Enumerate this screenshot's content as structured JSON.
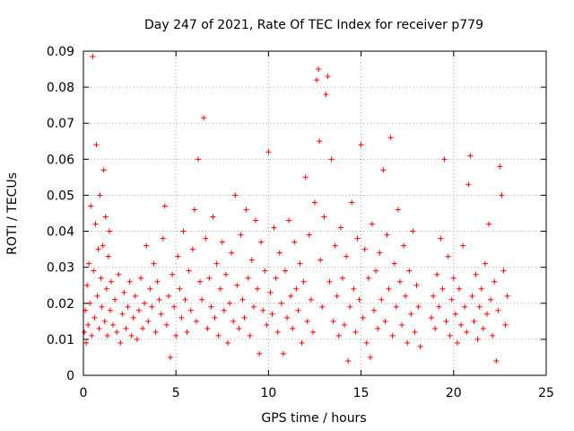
{
  "chart_data": {
    "type": "scatter",
    "title": "Day 247 of 2021, Rate Of TEC Index for receiver p779",
    "xlabel": "GPS time / hours",
    "ylabel": "ROTI / TECUs",
    "xlim": [
      0,
      25
    ],
    "ylim": [
      0,
      0.09
    ],
    "x_ticks": [
      0,
      5,
      10,
      15,
      20,
      25
    ],
    "y_ticks": [
      0,
      0.01,
      0.02,
      0.03,
      0.04,
      0.05,
      0.06,
      0.07,
      0.08,
      0.09
    ],
    "x_tick_labels": [
      "0",
      "5",
      "10",
      "15",
      "20",
      "25"
    ],
    "y_tick_labels": [
      "0",
      "0.01",
      "0.02",
      "0.03",
      "0.04",
      "0.05",
      "0.06",
      "0.07",
      "0.08",
      "0.09"
    ],
    "grid": true,
    "marker": "+",
    "color": "#ff0000",
    "series": [
      {
        "name": "ROTI",
        "points": [
          [
            0.05,
            0.012
          ],
          [
            0.1,
            0.018
          ],
          [
            0.15,
            0.009
          ],
          [
            0.2,
            0.025
          ],
          [
            0.25,
            0.014
          ],
          [
            0.3,
            0.031
          ],
          [
            0.35,
            0.02
          ],
          [
            0.4,
            0.047
          ],
          [
            0.45,
            0.011
          ],
          [
            0.5,
            0.0885
          ],
          [
            0.55,
            0.029
          ],
          [
            0.6,
            0.016
          ],
          [
            0.65,
            0.042
          ],
          [
            0.7,
            0.064
          ],
          [
            0.75,
            0.022
          ],
          [
            0.8,
            0.035
          ],
          [
            0.85,
            0.013
          ],
          [
            0.9,
            0.05
          ],
          [
            0.95,
            0.027
          ],
          [
            1.0,
            0.019
          ],
          [
            1.05,
            0.036
          ],
          [
            1.1,
            0.057
          ],
          [
            1.15,
            0.015
          ],
          [
            1.2,
            0.044
          ],
          [
            1.25,
            0.024
          ],
          [
            1.3,
            0.011
          ],
          [
            1.35,
            0.033
          ],
          [
            1.4,
            0.04
          ],
          [
            1.45,
            0.018
          ],
          [
            1.5,
            0.026
          ],
          [
            1.6,
            0.014
          ],
          [
            1.7,
            0.021
          ],
          [
            1.8,
            0.012
          ],
          [
            1.9,
            0.028
          ],
          [
            2.0,
            0.009
          ],
          [
            2.1,
            0.017
          ],
          [
            2.2,
            0.023
          ],
          [
            2.3,
            0.013
          ],
          [
            2.4,
            0.019
          ],
          [
            2.5,
            0.026
          ],
          [
            2.6,
            0.011
          ],
          [
            2.7,
            0.016
          ],
          [
            2.8,
            0.022
          ],
          [
            2.9,
            0.01
          ],
          [
            3.0,
            0.018
          ],
          [
            3.1,
            0.027
          ],
          [
            3.2,
            0.013
          ],
          [
            3.3,
            0.02
          ],
          [
            3.4,
            0.036
          ],
          [
            3.5,
            0.015
          ],
          [
            3.6,
            0.024
          ],
          [
            3.7,
            0.019
          ],
          [
            3.8,
            0.031
          ],
          [
            3.9,
            0.012
          ],
          [
            4.0,
            0.026
          ],
          [
            4.1,
            0.021
          ],
          [
            4.2,
            0.017
          ],
          [
            4.3,
            0.038
          ],
          [
            4.4,
            0.047
          ],
          [
            4.5,
            0.014
          ],
          [
            4.6,
            0.022
          ],
          [
            4.7,
            0.005
          ],
          [
            4.8,
            0.028
          ],
          [
            4.9,
            0.019
          ],
          [
            5.0,
            0.011
          ],
          [
            5.1,
            0.033
          ],
          [
            5.2,
            0.024
          ],
          [
            5.3,
            0.016
          ],
          [
            5.4,
            0.04
          ],
          [
            5.5,
            0.021
          ],
          [
            5.6,
            0.012
          ],
          [
            5.7,
            0.029
          ],
          [
            5.8,
            0.018
          ],
          [
            5.9,
            0.035
          ],
          [
            6.0,
            0.046
          ],
          [
            6.1,
            0.015
          ],
          [
            6.2,
            0.06
          ],
          [
            6.3,
            0.026
          ],
          [
            6.4,
            0.021
          ],
          [
            6.5,
            0.0715
          ],
          [
            6.6,
            0.038
          ],
          [
            6.7,
            0.013
          ],
          [
            6.8,
            0.027
          ],
          [
            6.9,
            0.019
          ],
          [
            7.0,
            0.044
          ],
          [
            7.1,
            0.016
          ],
          [
            7.2,
            0.031
          ],
          [
            7.3,
            0.011
          ],
          [
            7.4,
            0.024
          ],
          [
            7.5,
            0.037
          ],
          [
            7.6,
            0.018
          ],
          [
            7.7,
            0.028
          ],
          [
            7.8,
            0.009
          ],
          [
            7.9,
            0.02
          ],
          [
            8.0,
            0.034
          ],
          [
            8.1,
            0.015
          ],
          [
            8.2,
            0.05
          ],
          [
            8.3,
            0.025
          ],
          [
            8.4,
            0.013
          ],
          [
            8.5,
            0.039
          ],
          [
            8.6,
            0.021
          ],
          [
            8.7,
            0.016
          ],
          [
            8.8,
            0.046
          ],
          [
            8.9,
            0.027
          ],
          [
            9.0,
            0.011
          ],
          [
            9.1,
            0.032
          ],
          [
            9.2,
            0.019
          ],
          [
            9.3,
            0.043
          ],
          [
            9.4,
            0.024
          ],
          [
            9.5,
            0.006
          ],
          [
            9.6,
            0.037
          ],
          [
            9.7,
            0.018
          ],
          [
            9.8,
            0.029
          ],
          [
            9.9,
            0.014
          ],
          [
            10.0,
            0.062
          ],
          [
            10.1,
            0.023
          ],
          [
            10.2,
            0.017
          ],
          [
            10.3,
            0.041
          ],
          [
            10.4,
            0.027
          ],
          [
            10.5,
            0.012
          ],
          [
            10.6,
            0.034
          ],
          [
            10.7,
            0.02
          ],
          [
            10.8,
            0.006
          ],
          [
            10.9,
            0.029
          ],
          [
            11.0,
            0.016
          ],
          [
            11.1,
            0.043
          ],
          [
            11.2,
            0.022
          ],
          [
            11.3,
            0.013
          ],
          [
            11.4,
            0.037
          ],
          [
            11.5,
            0.024
          ],
          [
            11.6,
            0.018
          ],
          [
            11.7,
            0.031
          ],
          [
            11.8,
            0.009
          ],
          [
            11.9,
            0.026
          ],
          [
            12.0,
            0.055
          ],
          [
            12.1,
            0.015
          ],
          [
            12.2,
            0.039
          ],
          [
            12.3,
            0.021
          ],
          [
            12.4,
            0.012
          ],
          [
            12.5,
            0.048
          ],
          [
            12.6,
            0.082
          ],
          [
            12.7,
            0.085
          ],
          [
            12.75,
            0.065
          ],
          [
            12.8,
            0.032
          ],
          [
            12.9,
            0.019
          ],
          [
            13.0,
            0.044
          ],
          [
            13.1,
            0.078
          ],
          [
            13.2,
            0.083
          ],
          [
            13.3,
            0.026
          ],
          [
            13.4,
            0.06
          ],
          [
            13.5,
            0.015
          ],
          [
            13.6,
            0.036
          ],
          [
            13.7,
            0.022
          ],
          [
            13.8,
            0.011
          ],
          [
            13.9,
            0.041
          ],
          [
            14.0,
            0.027
          ],
          [
            14.1,
            0.014
          ],
          [
            14.2,
            0.033
          ],
          [
            14.3,
            0.004
          ],
          [
            14.4,
            0.019
          ],
          [
            14.5,
            0.048
          ],
          [
            14.6,
            0.024
          ],
          [
            14.7,
            0.012
          ],
          [
            14.8,
            0.038
          ],
          [
            14.9,
            0.021
          ],
          [
            15.0,
            0.064
          ],
          [
            15.1,
            0.016
          ],
          [
            15.2,
            0.035
          ],
          [
            15.3,
            0.009
          ],
          [
            15.4,
            0.027
          ],
          [
            15.5,
            0.005
          ],
          [
            15.6,
            0.042
          ],
          [
            15.7,
            0.018
          ],
          [
            15.8,
            0.029
          ],
          [
            15.9,
            0.013
          ],
          [
            16.0,
            0.034
          ],
          [
            16.1,
            0.021
          ],
          [
            16.2,
            0.057
          ],
          [
            16.3,
            0.015
          ],
          [
            16.4,
            0.039
          ],
          [
            16.5,
            0.024
          ],
          [
            16.6,
            0.066
          ],
          [
            16.7,
            0.011
          ],
          [
            16.8,
            0.031
          ],
          [
            16.9,
            0.019
          ],
          [
            17.0,
            0.046
          ],
          [
            17.1,
            0.026
          ],
          [
            17.2,
            0.014
          ],
          [
            17.3,
            0.036
          ],
          [
            17.4,
            0.022
          ],
          [
            17.5,
            0.009
          ],
          [
            17.6,
            0.029
          ],
          [
            17.7,
            0.017
          ],
          [
            17.8,
            0.04
          ],
          [
            17.9,
            0.012
          ],
          [
            18.0,
            0.025
          ],
          [
            18.1,
            0.019
          ],
          [
            18.2,
            0.008
          ],
          [
            18.8,
            0.016
          ],
          [
            18.9,
            0.022
          ],
          [
            19.0,
            0.013
          ],
          [
            19.1,
            0.028
          ],
          [
            19.2,
            0.019
          ],
          [
            19.3,
            0.038
          ],
          [
            19.4,
            0.024
          ],
          [
            19.5,
            0.06
          ],
          [
            19.6,
            0.015
          ],
          [
            19.7,
            0.033
          ],
          [
            19.8,
            0.011
          ],
          [
            19.9,
            0.021
          ],
          [
            20.0,
            0.027
          ],
          [
            20.1,
            0.017
          ],
          [
            20.2,
            0.009
          ],
          [
            20.3,
            0.024
          ],
          [
            20.4,
            0.014
          ],
          [
            20.5,
            0.036
          ],
          [
            20.6,
            0.019
          ],
          [
            20.7,
            0.012
          ],
          [
            20.8,
            0.053
          ],
          [
            20.9,
            0.061
          ],
          [
            21.0,
            0.022
          ],
          [
            21.1,
            0.015
          ],
          [
            21.2,
            0.028
          ],
          [
            21.3,
            0.01
          ],
          [
            21.4,
            0.019
          ],
          [
            21.5,
            0.024
          ],
          [
            21.6,
            0.013
          ],
          [
            21.7,
            0.031
          ],
          [
            21.8,
            0.017
          ],
          [
            21.9,
            0.042
          ],
          [
            22.0,
            0.021
          ],
          [
            22.1,
            0.011
          ],
          [
            22.2,
            0.026
          ],
          [
            22.3,
            0.004
          ],
          [
            22.4,
            0.018
          ],
          [
            22.5,
            0.058
          ],
          [
            22.6,
            0.05
          ],
          [
            22.7,
            0.029
          ],
          [
            22.8,
            0.014
          ],
          [
            22.9,
            0.022
          ]
        ]
      }
    ]
  }
}
